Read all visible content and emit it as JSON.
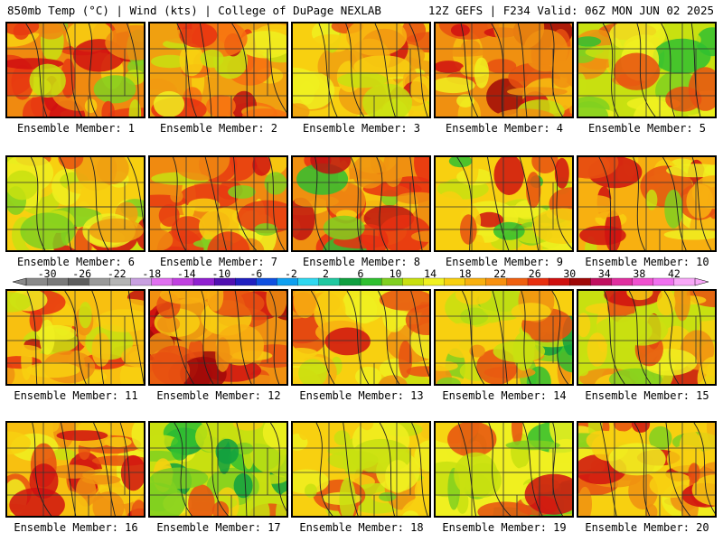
{
  "header": {
    "left": "850mb Temp (°C) | Wind (kts) | College of DuPage NEXLAB",
    "right": "12Z GEFS | F234 Valid: 06Z MON JUN 02 2025"
  },
  "colorbar": {
    "labels": [
      "-30",
      "-26",
      "-22",
      "-18",
      "-14",
      "-10",
      "-6",
      "-2",
      "2",
      "6",
      "10",
      "14",
      "18",
      "22",
      "26",
      "30",
      "34",
      "38",
      "42"
    ],
    "colors": [
      "#8a8a8a",
      "#7a7a7a",
      "#5e5e5e",
      "#9a9a9a",
      "#b4b4b4",
      "#c8a0e0",
      "#e070f0",
      "#c040e0",
      "#9020d0",
      "#5010b0",
      "#2020c0",
      "#1050e0",
      "#10a0f0",
      "#30d8f0",
      "#20c8a0",
      "#10a040",
      "#30c030",
      "#80d020",
      "#c8e010",
      "#f0f020",
      "#f8d010",
      "#f8b010",
      "#f89010",
      "#f06010",
      "#e83010",
      "#d01010",
      "#a00808",
      "#c01060",
      "#e030a0",
      "#f050d0",
      "#f070f0",
      "#f8a8f8"
    ]
  },
  "panels": [
    {
      "label": "Ensemble Member: 1",
      "palette": [
        "#f08a10",
        "#e83a10",
        "#d01010",
        "#f8d010",
        "#c8e010",
        "#80d020",
        "#30c030"
      ],
      "weights": [
        3,
        3,
        2,
        2,
        1,
        1,
        0
      ]
    },
    {
      "label": "Ensemble Member: 2",
      "palette": [
        "#f0a010",
        "#f87010",
        "#e83010",
        "#f8d010",
        "#f0f020",
        "#c8e010",
        "#c01010"
      ],
      "weights": [
        3,
        2,
        2,
        3,
        1,
        1,
        1
      ]
    },
    {
      "label": "Ensemble Member: 3",
      "palette": [
        "#f8d010",
        "#f0a010",
        "#e85010",
        "#f0f020",
        "#d01010",
        "#c8e010",
        "#f8b010"
      ],
      "weights": [
        3,
        3,
        2,
        2,
        1,
        1,
        2
      ]
    },
    {
      "label": "Ensemble Member: 4",
      "palette": [
        "#f09010",
        "#e85010",
        "#d01010",
        "#f8c010",
        "#f0f020",
        "#c8e010",
        "#a00808"
      ],
      "weights": [
        3,
        3,
        2,
        2,
        1,
        1,
        1
      ]
    },
    {
      "label": "Ensemble Member: 5",
      "palette": [
        "#c8e010",
        "#80d020",
        "#f0f020",
        "#30c030",
        "#f8d010",
        "#e85010",
        "#f09010"
      ],
      "weights": [
        3,
        3,
        3,
        2,
        2,
        1,
        1
      ]
    },
    {
      "label": "Ensemble Member: 6",
      "palette": [
        "#f8d010",
        "#f0a010",
        "#f0f020",
        "#c8e010",
        "#e85010",
        "#80d020",
        "#d01010"
      ],
      "weights": [
        3,
        2,
        3,
        2,
        1,
        1,
        1
      ]
    },
    {
      "label": "Ensemble Member: 7",
      "palette": [
        "#f08a10",
        "#e83a10",
        "#d01010",
        "#f8d010",
        "#f0f020",
        "#c8e010",
        "#80d020"
      ],
      "weights": [
        3,
        3,
        2,
        2,
        1,
        1,
        1
      ]
    },
    {
      "label": "Ensemble Member: 8",
      "palette": [
        "#f09010",
        "#e83010",
        "#c01010",
        "#f8d010",
        "#f0f020",
        "#30c030",
        "#80d020"
      ],
      "weights": [
        3,
        3,
        2,
        2,
        1,
        1,
        1
      ]
    },
    {
      "label": "Ensemble Member: 9",
      "palette": [
        "#f8d010",
        "#f0f020",
        "#e85010",
        "#c8e010",
        "#d01010",
        "#80d020",
        "#30c030"
      ],
      "weights": [
        3,
        3,
        2,
        2,
        1,
        1,
        1
      ]
    },
    {
      "label": "Ensemble Member: 10",
      "palette": [
        "#f8b010",
        "#e85010",
        "#d01010",
        "#f8d010",
        "#f0f020",
        "#c8e010",
        "#80d020"
      ],
      "weights": [
        3,
        2,
        2,
        3,
        2,
        1,
        1
      ]
    },
    {
      "label": "Ensemble Member: 11",
      "palette": [
        "#f8c010",
        "#f09010",
        "#e83010",
        "#f0f020",
        "#c01010",
        "#c8e010",
        "#f8d010"
      ],
      "weights": [
        3,
        3,
        2,
        2,
        1,
        1,
        2
      ]
    },
    {
      "label": "Ensemble Member: 12",
      "palette": [
        "#f09010",
        "#e85010",
        "#d01010",
        "#f8b010",
        "#f8d010",
        "#f0f020",
        "#a00808"
      ],
      "weights": [
        3,
        3,
        2,
        2,
        1,
        1,
        1
      ]
    },
    {
      "label": "Ensemble Member: 13",
      "palette": [
        "#f8d010",
        "#f09010",
        "#e85010",
        "#f0f020",
        "#d01010",
        "#f8b010",
        "#c8e010"
      ],
      "weights": [
        3,
        3,
        2,
        2,
        1,
        2,
        1
      ]
    },
    {
      "label": "Ensemble Member: 14",
      "palette": [
        "#f8d010",
        "#c8e010",
        "#80d020",
        "#30c030",
        "#10a040",
        "#e85010",
        "#f09010"
      ],
      "weights": [
        3,
        3,
        2,
        2,
        1,
        1,
        2
      ]
    },
    {
      "label": "Ensemble Member: 15",
      "palette": [
        "#c8e010",
        "#f8d010",
        "#80d020",
        "#f09010",
        "#e85010",
        "#d01010",
        "#f0f020"
      ],
      "weights": [
        3,
        3,
        2,
        2,
        2,
        1,
        2
      ]
    },
    {
      "label": "Ensemble Member: 16",
      "palette": [
        "#f8c010",
        "#f09010",
        "#e85010",
        "#d01010",
        "#f0f020",
        "#c8e010",
        "#f8d010"
      ],
      "weights": [
        3,
        3,
        2,
        2,
        2,
        1,
        2
      ]
    },
    {
      "label": "Ensemble Member: 17",
      "palette": [
        "#c8e010",
        "#80d020",
        "#30c030",
        "#f0f020",
        "#f8d010",
        "#e85010",
        "#10a040"
      ],
      "weights": [
        3,
        3,
        2,
        2,
        2,
        1,
        2
      ]
    },
    {
      "label": "Ensemble Member: 18",
      "palette": [
        "#f8d010",
        "#f0f020",
        "#c8e010",
        "#e85010",
        "#d01010",
        "#80d020",
        "#f09010"
      ],
      "weights": [
        3,
        3,
        3,
        2,
        1,
        1,
        2
      ]
    },
    {
      "label": "Ensemble Member: 19",
      "palette": [
        "#f0f020",
        "#c8e010",
        "#80d020",
        "#f8d010",
        "#e85010",
        "#d01010",
        "#30c030"
      ],
      "weights": [
        3,
        3,
        2,
        2,
        2,
        1,
        1
      ]
    },
    {
      "label": "Ensemble Member: 20",
      "palette": [
        "#f8d010",
        "#f09010",
        "#e85010",
        "#d01010",
        "#f0f020",
        "#c8e010",
        "#80d020"
      ],
      "weights": [
        3,
        3,
        2,
        2,
        2,
        1,
        1
      ]
    }
  ]
}
